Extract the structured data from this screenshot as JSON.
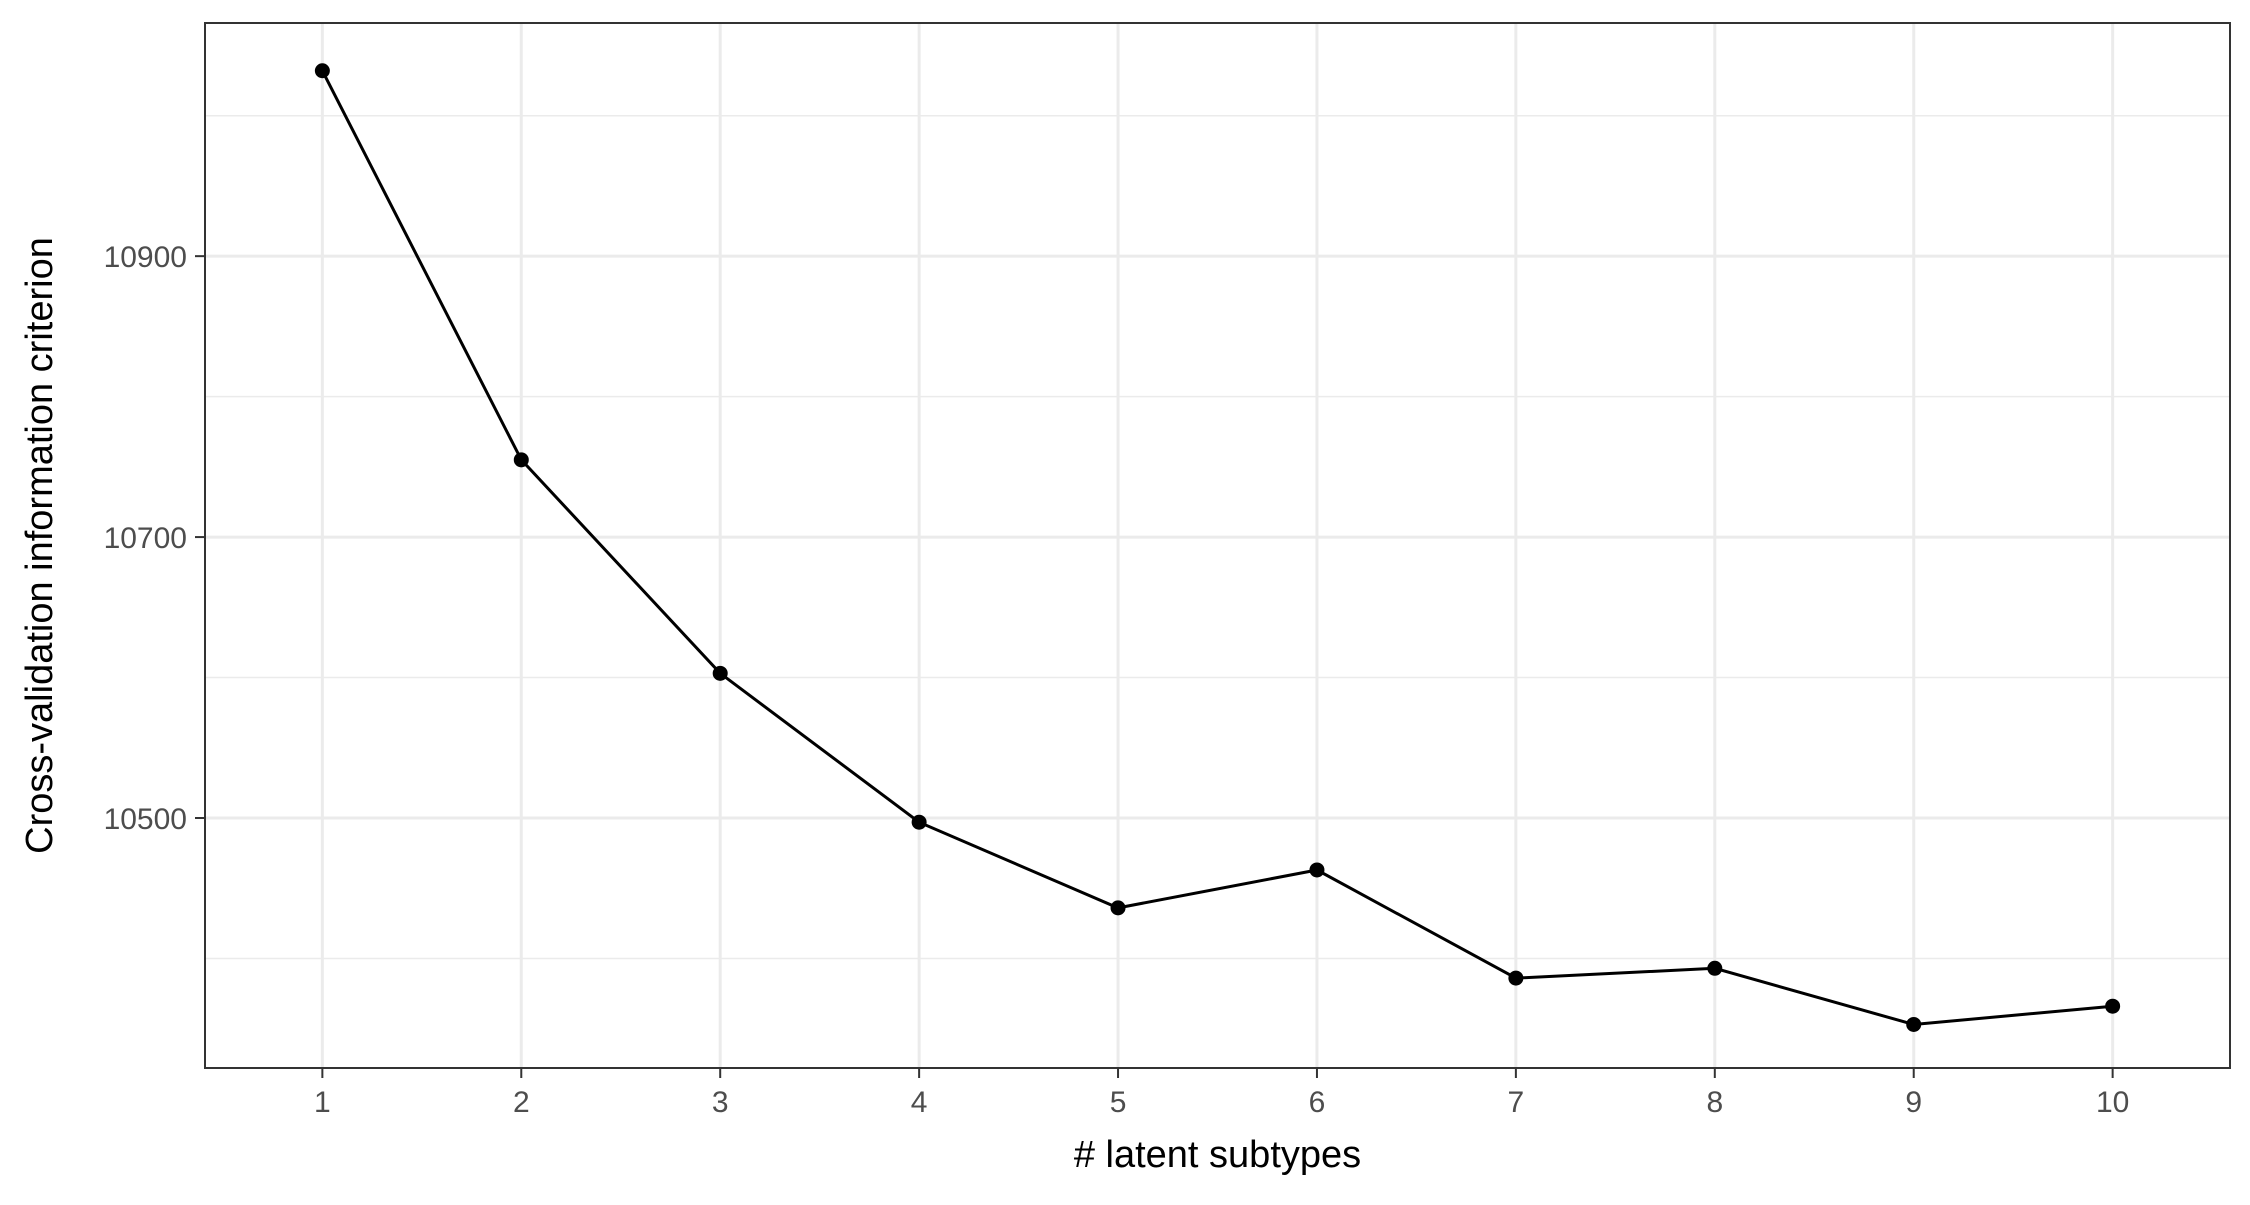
{
  "chart_data": {
    "type": "line",
    "title": "",
    "xlabel": "# latent subtypes",
    "ylabel": "Cross-validation information criterion",
    "x": [
      1,
      2,
      3,
      4,
      5,
      6,
      7,
      8,
      9,
      10
    ],
    "series": [
      {
        "values": [
          11032,
          10755,
          10603,
          10497,
          10436,
          10463,
          10386,
          10393,
          10353,
          10366
        ]
      }
    ],
    "xticks": [
      1,
      2,
      3,
      4,
      5,
      6,
      7,
      8,
      9,
      10
    ],
    "yticks": [
      10500,
      10700,
      10900
    ],
    "yminor": [
      10400,
      10600,
      10800,
      11000
    ],
    "xlim": [
      0.41,
      10.59
    ],
    "ylim": [
      10322,
      11066
    ],
    "grid": true,
    "legend": "none",
    "colors": {
      "line": "#000000",
      "points": "#000000",
      "grid": "#ebebeb",
      "panel_border": "#333333",
      "tick_text": "#4d4d4d"
    }
  }
}
